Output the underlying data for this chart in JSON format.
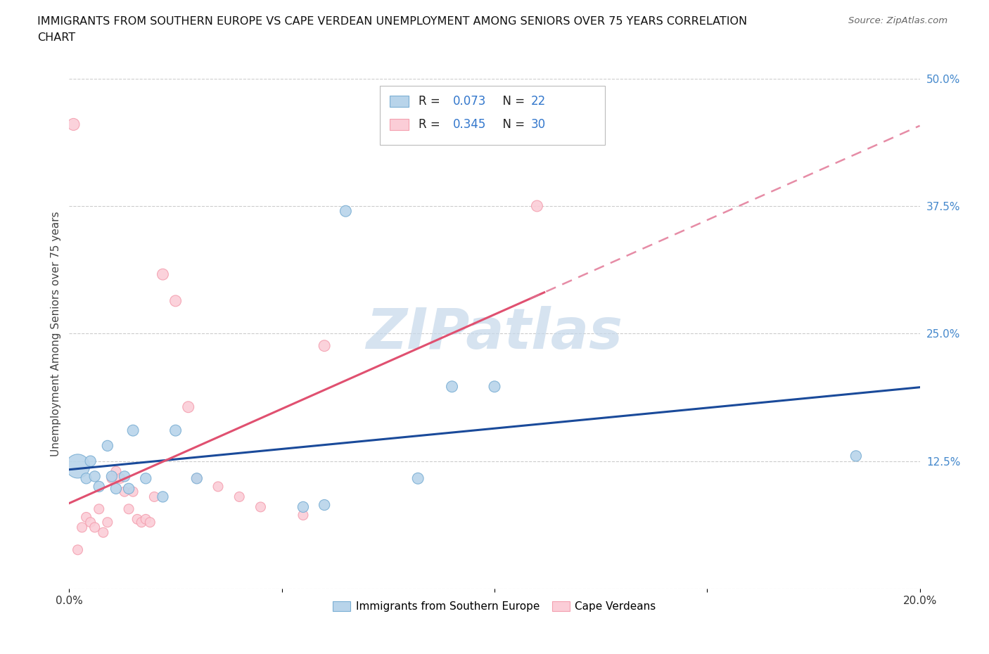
{
  "title_line1": "IMMIGRANTS FROM SOUTHERN EUROPE VS CAPE VERDEAN UNEMPLOYMENT AMONG SENIORS OVER 75 YEARS CORRELATION",
  "title_line2": "CHART",
  "source": "Source: ZipAtlas.com",
  "ylabel": "Unemployment Among Seniors over 75 years",
  "xlim": [
    0.0,
    0.2
  ],
  "ylim": [
    0.0,
    0.5
  ],
  "blue_color": "#7BAFD4",
  "blue_fill": "#B8D4EA",
  "pink_color": "#F4A0B0",
  "pink_fill": "#FBCDD7",
  "line_blue": "#1A4A9A",
  "line_pink": "#E05070",
  "line_pink_dash": "#E07090",
  "watermark_text": "ZIPatlas",
  "watermark_color": "#C5D8EA",
  "legend_label1": "Immigrants from Southern Europe",
  "legend_label2": "Cape Verdeans",
  "blue_points": [
    [
      0.002,
      0.12
    ],
    [
      0.004,
      0.108
    ],
    [
      0.005,
      0.125
    ],
    [
      0.006,
      0.11
    ],
    [
      0.007,
      0.1
    ],
    [
      0.009,
      0.14
    ],
    [
      0.01,
      0.11
    ],
    [
      0.011,
      0.098
    ],
    [
      0.013,
      0.11
    ],
    [
      0.014,
      0.098
    ],
    [
      0.015,
      0.155
    ],
    [
      0.018,
      0.108
    ],
    [
      0.022,
      0.09
    ],
    [
      0.025,
      0.155
    ],
    [
      0.03,
      0.108
    ],
    [
      0.055,
      0.08
    ],
    [
      0.06,
      0.082
    ],
    [
      0.065,
      0.37
    ],
    [
      0.082,
      0.108
    ],
    [
      0.09,
      0.198
    ],
    [
      0.1,
      0.198
    ],
    [
      0.185,
      0.13
    ]
  ],
  "blue_sizes": [
    600,
    120,
    120,
    120,
    120,
    120,
    120,
    120,
    120,
    120,
    130,
    120,
    120,
    130,
    120,
    120,
    120,
    130,
    130,
    130,
    130,
    120
  ],
  "pink_points": [
    [
      0.001,
      0.455
    ],
    [
      0.002,
      0.038
    ],
    [
      0.003,
      0.06
    ],
    [
      0.004,
      0.07
    ],
    [
      0.005,
      0.065
    ],
    [
      0.006,
      0.06
    ],
    [
      0.007,
      0.078
    ],
    [
      0.008,
      0.055
    ],
    [
      0.009,
      0.065
    ],
    [
      0.01,
      0.108
    ],
    [
      0.011,
      0.115
    ],
    [
      0.012,
      0.108
    ],
    [
      0.013,
      0.095
    ],
    [
      0.014,
      0.078
    ],
    [
      0.015,
      0.095
    ],
    [
      0.016,
      0.068
    ],
    [
      0.017,
      0.065
    ],
    [
      0.018,
      0.068
    ],
    [
      0.019,
      0.065
    ],
    [
      0.02,
      0.09
    ],
    [
      0.022,
      0.308
    ],
    [
      0.025,
      0.282
    ],
    [
      0.028,
      0.178
    ],
    [
      0.03,
      0.108
    ],
    [
      0.035,
      0.1
    ],
    [
      0.04,
      0.09
    ],
    [
      0.045,
      0.08
    ],
    [
      0.055,
      0.072
    ],
    [
      0.06,
      0.238
    ],
    [
      0.11,
      0.375
    ]
  ],
  "pink_sizes": [
    150,
    100,
    100,
    100,
    100,
    100,
    100,
    100,
    100,
    100,
    100,
    100,
    100,
    100,
    100,
    100,
    100,
    100,
    100,
    100,
    130,
    130,
    130,
    100,
    100,
    100,
    100,
    100,
    130,
    130
  ]
}
